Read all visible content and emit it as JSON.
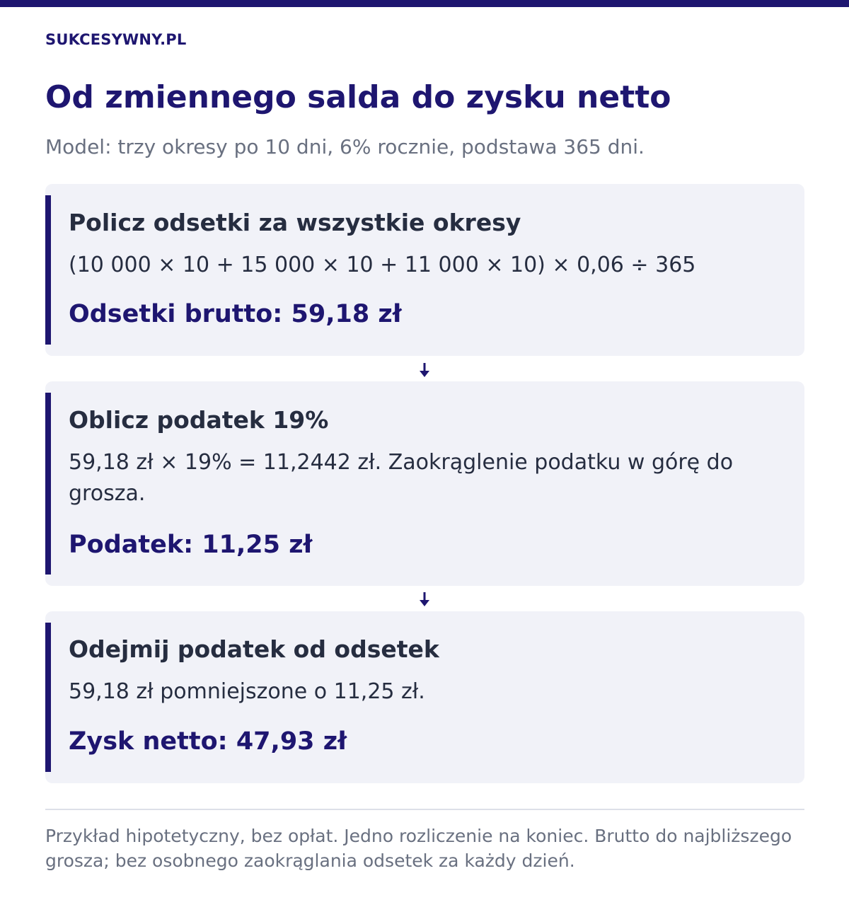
{
  "header": {
    "brand": "SUKCESYWNY.PL",
    "title": "Od zmiennego salda do zysku netto",
    "subtitle": "Model: trzy okresy po 10 dni, 6% rocznie, podstawa 365 dni."
  },
  "steps": [
    {
      "title": "Policz odsetki za wszystkie okresy",
      "text": "(10 000 × 10 + 15 000 × 10 + 11 000 × 10) × 0,06 ÷ 365",
      "result": "Odsetki brutto: 59,18 zł"
    },
    {
      "title": "Oblicz podatek 19%",
      "text": "59,18 zł × 19% = 11,2442 zł. Zaokrąglenie podatku w górę do grosza.",
      "result": "Podatek: 11,25 zł"
    },
    {
      "title": "Odejmij podatek od odsetek",
      "text": "59,18 zł pomniejszone o 11,25 zł.",
      "result": "Zysk netto: 47,93 zł"
    }
  ],
  "footnote": "Przykład hipotetyczny, bez opłat. Jedno rozliczenie na koniec. Brutto do najbliższego grosza; bez osobnego zaokrąglania odsetek za każdy dzień.",
  "colors": {
    "accent": "#1e1670",
    "card_background": "#f1f2f8",
    "muted_text": "#697080"
  },
  "icons": {
    "connector": "arrow-down-icon"
  }
}
